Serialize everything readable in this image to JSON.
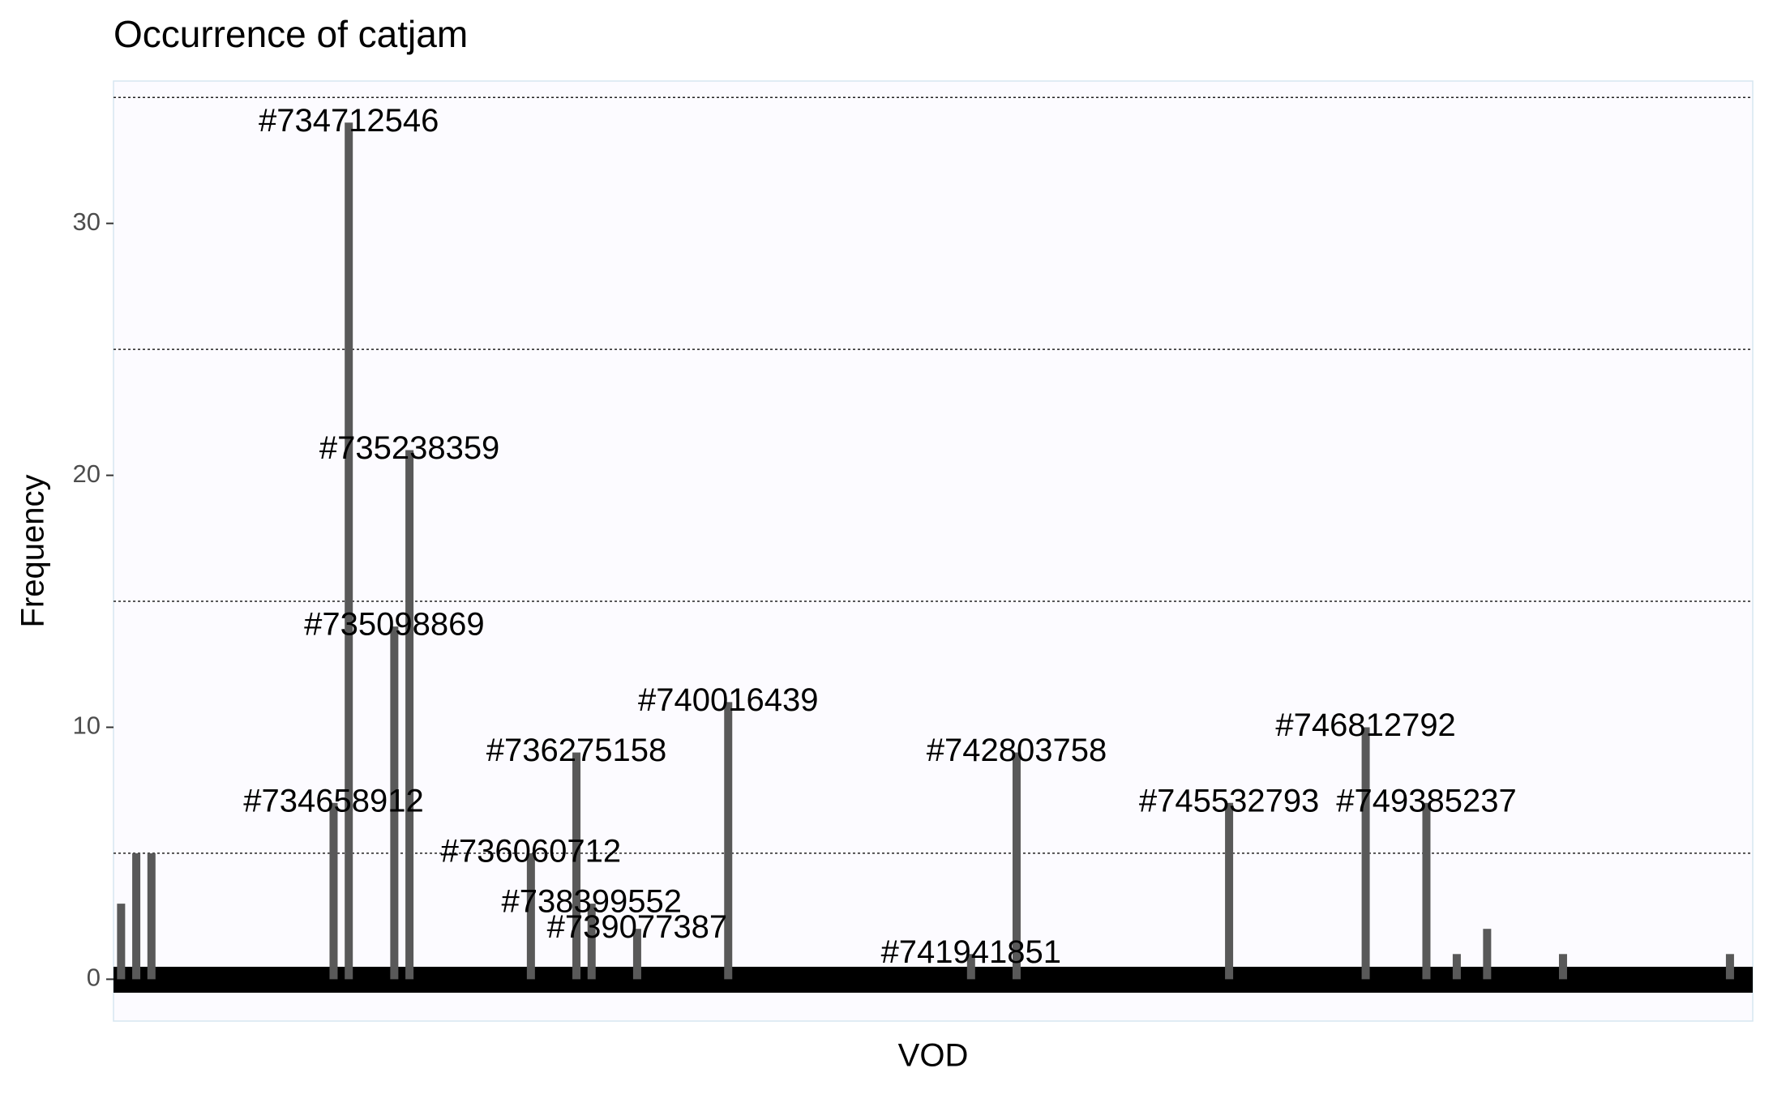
{
  "chart_data": {
    "type": "bar",
    "title": "Occurrence of catjam",
    "x_label": "VOD",
    "y_label": "Frequency",
    "categories": [
      null,
      null,
      null,
      null,
      null,
      null,
      null,
      null,
      null,
      null,
      null,
      null,
      null,
      null,
      "#734658912",
      "#734712546",
      null,
      null,
      "#735098869",
      "#735238359",
      null,
      null,
      null,
      null,
      null,
      null,
      null,
      "#736060712",
      null,
      null,
      "#736275158",
      "#738399552",
      null,
      null,
      "#739077387",
      null,
      null,
      null,
      null,
      null,
      "#740016439",
      null,
      null,
      null,
      null,
      null,
      null,
      null,
      null,
      null,
      null,
      null,
      null,
      null,
      null,
      null,
      "#741941851",
      null,
      null,
      "#742803758",
      null,
      null,
      null,
      null,
      null,
      null,
      null,
      null,
      null,
      null,
      null,
      null,
      null,
      "#745532793",
      null,
      null,
      null,
      null,
      null,
      null,
      null,
      null,
      "#746812792",
      null,
      null,
      null,
      "#749385237",
      null,
      null,
      null,
      null,
      null,
      null,
      null,
      null,
      null,
      null,
      null,
      null,
      null,
      null,
      null,
      null,
      null,
      null,
      null,
      null,
      null
    ],
    "values": [
      3,
      5,
      5,
      0,
      0,
      0,
      0,
      0,
      0,
      0,
      0,
      0,
      0,
      0,
      7,
      34,
      0,
      0,
      14,
      21,
      0,
      0,
      0,
      0,
      0,
      0,
      0,
      5,
      0,
      0,
      9,
      3,
      0,
      0,
      2,
      0,
      0,
      0,
      0,
      0,
      11,
      0,
      0,
      0,
      0,
      0,
      0,
      0,
      0,
      0,
      0,
      0,
      0,
      0,
      0,
      0,
      1,
      0,
      0,
      9,
      0,
      0,
      0,
      0,
      0,
      0,
      0,
      0,
      0,
      0,
      0,
      0,
      0,
      7,
      0,
      0,
      0,
      0,
      0,
      0,
      0,
      0,
      10,
      0,
      0,
      0,
      7,
      0,
      1,
      0,
      2,
      0,
      0,
      0,
      0,
      1,
      0,
      0,
      0,
      0,
      0,
      0,
      0,
      0,
      0,
      0,
      1,
      0
    ],
    "color": "#595959",
    "ylim": [
      -1.66,
      35.65
    ],
    "yticks": [
      0,
      10,
      20,
      30
    ],
    "yminor": [
      5,
      15,
      25,
      35
    ],
    "grid": true
  }
}
